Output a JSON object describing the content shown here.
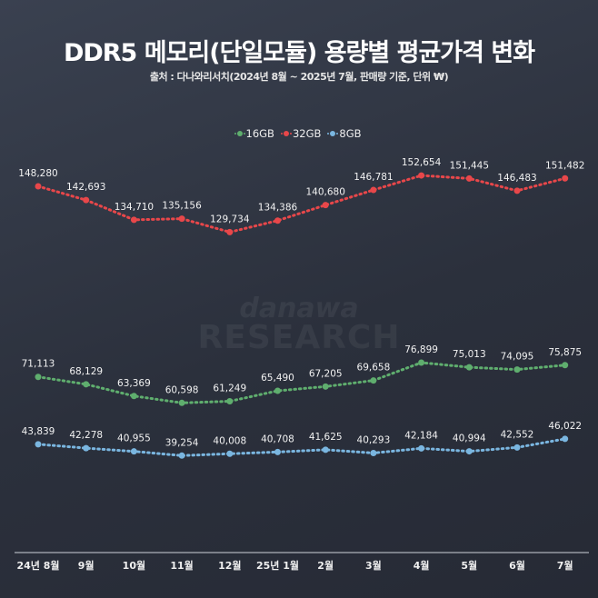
{
  "chart_data": {
    "type": "line",
    "title": "DDR5 메모리(단일모듈) 용량별 평균가격 변화",
    "subtitle": "출처 : 다나와리서치(2024년 8월 ~ 2025년 7월, 판매량 기준, 단위 ₩)",
    "categories": [
      "24년 8월",
      "9월",
      "10월",
      "11월",
      "12월",
      "25년 1월",
      "2월",
      "3월",
      "4월",
      "5월",
      "6월",
      "7월"
    ],
    "legend_position": "top-center",
    "grid": false,
    "ylim": [
      0,
      150000
    ],
    "series": [
      {
        "name": "16GB",
        "color": "#5fae6e",
        "values": [
          71113,
          68129,
          63369,
          60598,
          61249,
          65490,
          67205,
          69658,
          76899,
          75013,
          74095,
          75875
        ]
      },
      {
        "name": "32GB",
        "color": "#e8474a",
        "values": [
          148280,
          142693,
          134710,
          135156,
          129734,
          134386,
          140680,
          146781,
          152654,
          151445,
          146483,
          151482
        ]
      },
      {
        "name": "8GB",
        "color": "#7ab6e0",
        "values": [
          43839,
          42278,
          40955,
          39254,
          40008,
          40708,
          41625,
          40293,
          42184,
          40994,
          42552,
          46022
        ]
      }
    ]
  },
  "watermark": {
    "line1": "danawa",
    "line2": "RESEARCH"
  }
}
